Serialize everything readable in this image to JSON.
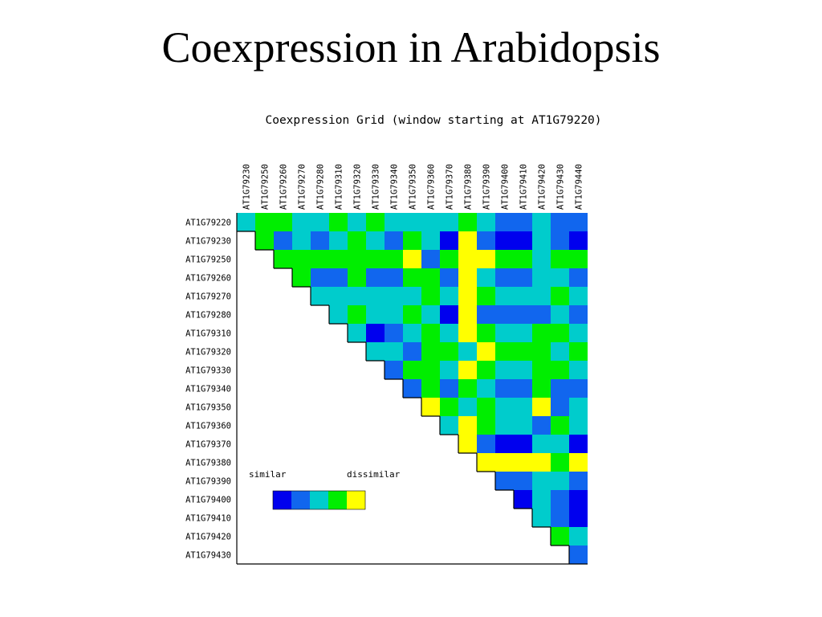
{
  "slide": {
    "title": "Coexpression in Arabidopsis"
  },
  "chart_data": {
    "type": "heatmap",
    "title": "Coexpression Grid (window starting at AT1G79220)",
    "col_labels": [
      "AT1G79230",
      "AT1G79250",
      "AT1G79260",
      "AT1G79270",
      "AT1G79280",
      "AT1G79310",
      "AT1G79320",
      "AT1G79330",
      "AT1G79340",
      "AT1G79350",
      "AT1G79360",
      "AT1G79370",
      "AT1G79380",
      "AT1G79390",
      "AT1G79400",
      "AT1G79410",
      "AT1G79420",
      "AT1G79430",
      "AT1G79440"
    ],
    "row_labels": [
      "AT1G79220",
      "AT1G79230",
      "AT1G79250",
      "AT1G79260",
      "AT1G79270",
      "AT1G79280",
      "AT1G79310",
      "AT1G79320",
      "AT1G79330",
      "AT1G79340",
      "AT1G79350",
      "AT1G79360",
      "AT1G79370",
      "AT1G79380",
      "AT1G79390",
      "AT1G79400",
      "AT1G79410",
      "AT1G79420",
      "AT1G79430"
    ],
    "scale": {
      "levels": [
        1,
        2,
        3,
        4,
        5
      ],
      "colors": [
        "#0000ee",
        "#1166ee",
        "#00cccc",
        "#00ee00",
        "#ffff00"
      ],
      "low_label": "similar",
      "high_label": "dissimilar"
    },
    "matrix": [
      [
        3,
        4,
        4,
        3,
        3,
        4,
        3,
        4,
        3,
        3,
        3,
        3,
        4,
        3,
        2,
        2,
        3,
        2,
        2
      ],
      [
        0,
        4,
        2,
        3,
        2,
        3,
        4,
        3,
        2,
        4,
        3,
        1,
        5,
        2,
        1,
        1,
        3,
        2,
        1
      ],
      [
        0,
        0,
        4,
        4,
        4,
        4,
        4,
        4,
        4,
        5,
        2,
        4,
        5,
        5,
        4,
        4,
        3,
        4,
        4
      ],
      [
        0,
        0,
        0,
        4,
        2,
        2,
        4,
        2,
        2,
        4,
        4,
        2,
        5,
        3,
        2,
        2,
        3,
        3,
        2
      ],
      [
        0,
        0,
        0,
        0,
        3,
        3,
        3,
        3,
        3,
        3,
        4,
        3,
        5,
        4,
        3,
        3,
        3,
        4,
        3
      ],
      [
        0,
        0,
        0,
        0,
        0,
        3,
        4,
        3,
        3,
        4,
        3,
        1,
        5,
        2,
        2,
        2,
        2,
        3,
        2
      ],
      [
        0,
        0,
        0,
        0,
        0,
        0,
        3,
        1,
        2,
        3,
        4,
        3,
        5,
        4,
        3,
        3,
        4,
        4,
        3
      ],
      [
        0,
        0,
        0,
        0,
        0,
        0,
        0,
        3,
        3,
        2,
        4,
        4,
        3,
        5,
        4,
        4,
        4,
        3,
        4
      ],
      [
        0,
        0,
        0,
        0,
        0,
        0,
        0,
        0,
        2,
        4,
        4,
        3,
        5,
        4,
        3,
        3,
        4,
        4,
        3
      ],
      [
        0,
        0,
        0,
        0,
        0,
        0,
        0,
        0,
        0,
        2,
        4,
        2,
        4,
        3,
        2,
        2,
        4,
        2,
        2
      ],
      [
        0,
        0,
        0,
        0,
        0,
        0,
        0,
        0,
        0,
        0,
        5,
        4,
        3,
        4,
        3,
        3,
        5,
        2,
        3
      ],
      [
        0,
        0,
        0,
        0,
        0,
        0,
        0,
        0,
        0,
        0,
        0,
        3,
        5,
        4,
        3,
        3,
        2,
        4,
        3
      ],
      [
        0,
        0,
        0,
        0,
        0,
        0,
        0,
        0,
        0,
        0,
        0,
        0,
        5,
        2,
        1,
        1,
        3,
        3,
        1
      ],
      [
        0,
        0,
        0,
        0,
        0,
        0,
        0,
        0,
        0,
        0,
        0,
        0,
        0,
        5,
        5,
        5,
        5,
        4,
        5
      ],
      [
        0,
        0,
        0,
        0,
        0,
        0,
        0,
        0,
        0,
        0,
        0,
        0,
        0,
        0,
        2,
        2,
        3,
        3,
        2
      ],
      [
        0,
        0,
        0,
        0,
        0,
        0,
        0,
        0,
        0,
        0,
        0,
        0,
        0,
        0,
        0,
        1,
        3,
        2,
        1
      ],
      [
        0,
        0,
        0,
        0,
        0,
        0,
        0,
        0,
        0,
        0,
        0,
        0,
        0,
        0,
        0,
        0,
        3,
        2,
        1
      ],
      [
        0,
        0,
        0,
        0,
        0,
        0,
        0,
        0,
        0,
        0,
        0,
        0,
        0,
        0,
        0,
        0,
        0,
        4,
        3
      ],
      [
        0,
        0,
        0,
        0,
        0,
        0,
        0,
        0,
        0,
        0,
        0,
        0,
        0,
        0,
        0,
        0,
        0,
        0,
        2
      ]
    ]
  }
}
